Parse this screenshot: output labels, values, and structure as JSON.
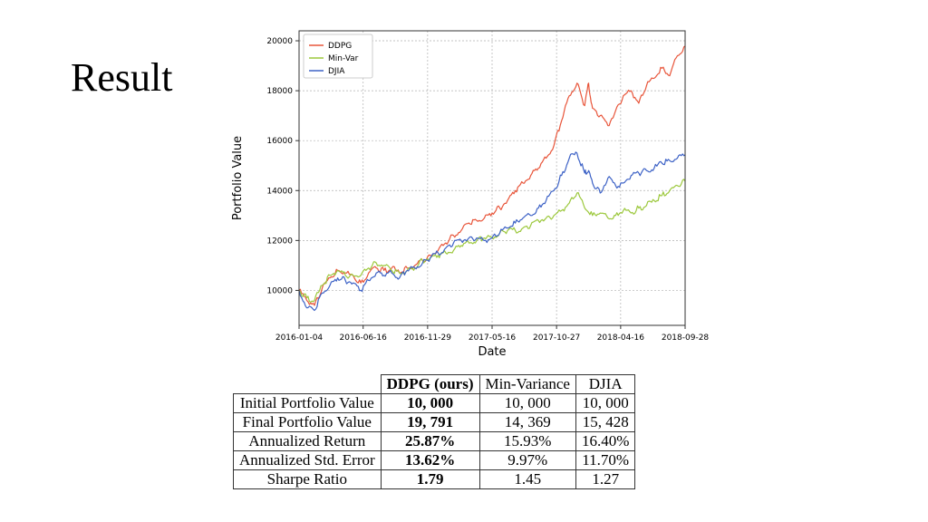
{
  "slide": {
    "title": "Result"
  },
  "chart_data": {
    "type": "line",
    "title": "",
    "xlabel": "Date",
    "ylabel": "Portfolio Value",
    "xlim": [
      0,
      1000
    ],
    "ylim": [
      8600,
      20400
    ],
    "x_ticks": [
      {
        "label": "2016-01-04",
        "x": 0
      },
      {
        "label": "2016-06-16",
        "x": 166
      },
      {
        "label": "2016-11-29",
        "x": 333
      },
      {
        "label": "2017-05-16",
        "x": 500
      },
      {
        "label": "2017-10-27",
        "x": 667
      },
      {
        "label": "2018-04-16",
        "x": 833
      },
      {
        "label": "2018-09-28",
        "x": 1000
      }
    ],
    "y_ticks": [
      10000,
      12000,
      14000,
      16000,
      18000,
      20000
    ],
    "y_tick_labels": [
      "10000",
      "12000",
      "14000",
      "16000",
      "18000",
      "20000"
    ],
    "grid": true,
    "legend_position": "top-left",
    "series": [
      {
        "name": "DDPG",
        "color": "#e8553a",
        "x": [
          0,
          20,
          40,
          60,
          80,
          100,
          120,
          140,
          160,
          180,
          200,
          220,
          240,
          260,
          280,
          300,
          320,
          340,
          360,
          380,
          400,
          420,
          440,
          460,
          480,
          500,
          520,
          540,
          560,
          580,
          600,
          620,
          640,
          660,
          680,
          700,
          720,
          740,
          750,
          760,
          780,
          800,
          820,
          840,
          860,
          880,
          900,
          920,
          940,
          960,
          980,
          1000
        ],
        "y": [
          10000,
          9600,
          9400,
          10100,
          10500,
          10800,
          10700,
          10600,
          10300,
          10700,
          10900,
          10800,
          10900,
          10700,
          10900,
          11000,
          11200,
          11400,
          11600,
          11900,
          12200,
          12400,
          12700,
          12800,
          12900,
          13100,
          13300,
          13600,
          14000,
          14300,
          14600,
          14900,
          15300,
          15800,
          16800,
          17800,
          18300,
          17400,
          18300,
          17300,
          17000,
          16600,
          17200,
          17800,
          18000,
          17500,
          18200,
          18500,
          18900,
          18600,
          19400,
          19791
        ]
      },
      {
        "name": "Min-Var",
        "color": "#9cc83c",
        "x": [
          0,
          20,
          40,
          60,
          80,
          100,
          120,
          140,
          160,
          180,
          200,
          220,
          240,
          260,
          280,
          300,
          320,
          340,
          360,
          380,
          400,
          420,
          440,
          460,
          480,
          500,
          520,
          540,
          560,
          580,
          600,
          620,
          640,
          660,
          680,
          700,
          720,
          740,
          760,
          780,
          800,
          820,
          840,
          860,
          880,
          900,
          920,
          940,
          960,
          980,
          1000
        ],
        "y": [
          10000,
          9700,
          9600,
          10200,
          10600,
          10800,
          10600,
          10600,
          10600,
          10900,
          11100,
          11000,
          10800,
          10700,
          10800,
          10900,
          11200,
          11300,
          11400,
          11500,
          11600,
          11800,
          11900,
          12000,
          12100,
          12100,
          12300,
          12400,
          12400,
          12500,
          12600,
          12800,
          12900,
          13000,
          13200,
          13500,
          13900,
          13300,
          13000,
          13100,
          12900,
          13000,
          13200,
          13100,
          13300,
          13400,
          13600,
          13800,
          14000,
          14200,
          14369
        ]
      },
      {
        "name": "DJIA",
        "color": "#3d62c6",
        "x": [
          0,
          20,
          40,
          60,
          80,
          100,
          120,
          140,
          160,
          180,
          200,
          220,
          240,
          260,
          280,
          300,
          320,
          340,
          360,
          380,
          400,
          420,
          440,
          460,
          480,
          500,
          520,
          540,
          560,
          580,
          600,
          620,
          640,
          660,
          680,
          700,
          720,
          740,
          750,
          760,
          780,
          800,
          820,
          840,
          860,
          880,
          900,
          920,
          940,
          960,
          980,
          1000
        ],
        "y": [
          10000,
          9300,
          9200,
          9900,
          10200,
          10500,
          10400,
          10300,
          10000,
          10400,
          10700,
          10600,
          10700,
          10500,
          10800,
          10900,
          11100,
          11300,
          11500,
          11700,
          11900,
          12000,
          12100,
          12100,
          12000,
          12100,
          12300,
          12500,
          12700,
          12900,
          13000,
          13300,
          13600,
          14000,
          14600,
          15300,
          15500,
          14700,
          14800,
          14300,
          13900,
          14500,
          14200,
          14300,
          14600,
          14700,
          14800,
          14900,
          15100,
          15200,
          15300,
          15428
        ]
      }
    ]
  },
  "table": {
    "headers": [
      "",
      "DDPG (ours)",
      "Min-Variance",
      "DJIA"
    ],
    "rows": [
      {
        "label": "Initial Portfolio Value",
        "ddpg": "10, 000",
        "minvar": "10, 000",
        "djia": "10, 000"
      },
      {
        "label": "Final Portfolio Value",
        "ddpg": "19, 791",
        "minvar": "14, 369",
        "djia": "15, 428"
      },
      {
        "label": "Annualized Return",
        "ddpg": "25.87%",
        "minvar": "15.93%",
        "djia": "16.40%"
      },
      {
        "label": "Annualized Std. Error",
        "ddpg": "13.62%",
        "minvar": "9.97%",
        "djia": "11.70%"
      },
      {
        "label": "Sharpe Ratio",
        "ddpg": "1.79",
        "minvar": "1.45",
        "djia": "1.27"
      }
    ]
  }
}
